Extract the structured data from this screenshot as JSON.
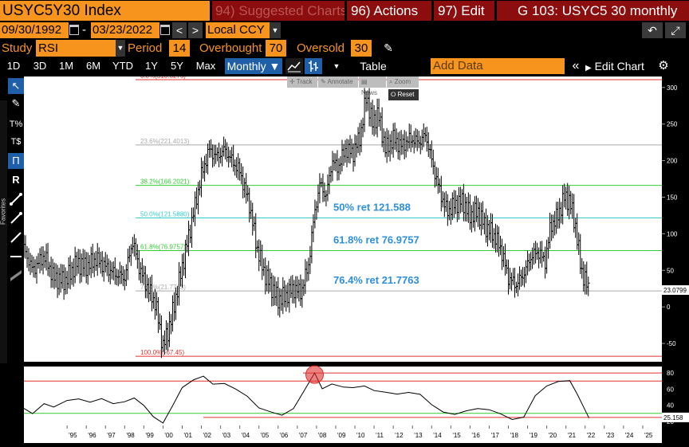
{
  "header": {
    "ticker": "USYC5Y30 Index",
    "suggested": "94) Suggested Charts",
    "actions": "96) Actions",
    "edit": "97) Edit",
    "title": "G 103: USYC5 30 monthly"
  },
  "dates": {
    "start": "09/30/1992",
    "dash": "-",
    "end": "03/23/2022",
    "prev": "<",
    "next": ">",
    "currency": "Local CCY",
    "undo": "↶",
    "expand": "⤢"
  },
  "study": {
    "label": "Study",
    "value": "RSI",
    "period_label": "Period",
    "period": "14",
    "overbought_label": "Overbought",
    "overbought": "70",
    "oversold_label": "Oversold",
    "oversold": "30"
  },
  "toolbar": {
    "ranges": [
      "1D",
      "3D",
      "1M",
      "6M",
      "YTD",
      "1Y",
      "5Y",
      "Max"
    ],
    "frequency": "Monthly ▼",
    "table": "Table",
    "add_data_placeholder": "Add Data",
    "collapse": "«",
    "edit_chart": "Edit Chart",
    "gear": "⚙"
  },
  "mini_toolbar": {
    "track": "✛ Track",
    "annotate": "✎ Annotate",
    "news": "▤ News",
    "zoom": "⌕ Zoom",
    "reset": "⭘ Reset"
  },
  "sidebar": {
    "favorites": "Favorites"
  },
  "colors": {
    "orange": "#f7941d",
    "dark_red": "#8b0d0d",
    "selected_blue": "#1f5fa8",
    "fib_red": "#e03030",
    "fib_green": "#33cc33",
    "fib_cyan": "#33cccc",
    "fib_gray": "#aaaaaa",
    "annotation_blue": "#2e8fe0"
  },
  "chart_data": [
    {
      "type": "candlestick",
      "frequency": "monthly",
      "ylim": [
        -75,
        315
      ],
      "yticks": [
        -50,
        0,
        50,
        100,
        150,
        200,
        250,
        300
      ],
      "xlim": [
        1992.75,
        2026
      ],
      "xtick_labels": [
        "'95",
        "'96",
        "'97",
        "'98",
        "'99",
        "'00",
        "'01",
        "'02",
        "'03",
        "'04",
        "'05",
        "'06",
        "'07",
        "'08",
        "'09",
        "'10",
        "'11",
        "'12",
        "'13",
        "'14",
        "'15",
        "'16",
        "'17",
        "'18",
        "'19",
        "'20",
        "'21",
        "'22",
        "'23",
        "'24",
        "'25"
      ],
      "last_value": "23.0799",
      "anchor_points": [
        [
          1992.75,
          80
        ],
        [
          1993.2,
          50
        ],
        [
          1993.8,
          70
        ],
        [
          1994.3,
          40
        ],
        [
          1994.9,
          35
        ],
        [
          1995.5,
          60
        ],
        [
          1996.0,
          55
        ],
        [
          1996.5,
          65
        ],
        [
          1997.0,
          55
        ],
        [
          1997.5,
          45
        ],
        [
          1998.0,
          40
        ],
        [
          1998.4,
          90
        ],
        [
          1998.8,
          50
        ],
        [
          1999.3,
          20
        ],
        [
          1999.6,
          5
        ],
        [
          2000.0,
          -55
        ],
        [
          2000.4,
          -20
        ],
        [
          2000.8,
          30
        ],
        [
          2001.2,
          80
        ],
        [
          2001.6,
          130
        ],
        [
          2002.0,
          180
        ],
        [
          2002.4,
          215
        ],
        [
          2002.8,
          205
        ],
        [
          2003.2,
          215
        ],
        [
          2003.6,
          200
        ],
        [
          2004.0,
          185
        ],
        [
          2004.5,
          140
        ],
        [
          2004.9,
          80
        ],
        [
          2005.3,
          45
        ],
        [
          2005.7,
          25
        ],
        [
          2006.0,
          10
        ],
        [
          2006.4,
          15
        ],
        [
          2006.8,
          25
        ],
        [
          2007.2,
          20
        ],
        [
          2007.6,
          60
        ],
        [
          2007.9,
          130
        ],
        [
          2008.2,
          170
        ],
        [
          2008.5,
          150
        ],
        [
          2008.8,
          200
        ],
        [
          2009.1,
          190
        ],
        [
          2009.5,
          215
        ],
        [
          2009.9,
          210
        ],
        [
          2010.3,
          235
        ],
        [
          2010.6,
          290
        ],
        [
          2010.9,
          250
        ],
        [
          2011.2,
          265
        ],
        [
          2011.6,
          215
        ],
        [
          2012.0,
          230
        ],
        [
          2012.4,
          220
        ],
        [
          2012.9,
          230
        ],
        [
          2013.3,
          225
        ],
        [
          2013.7,
          235
        ],
        [
          2014.0,
          200
        ],
        [
          2014.4,
          160
        ],
        [
          2014.8,
          130
        ],
        [
          2015.2,
          140
        ],
        [
          2015.6,
          145
        ],
        [
          2016.0,
          125
        ],
        [
          2016.4,
          130
        ],
        [
          2016.8,
          110
        ],
        [
          2017.2,
          100
        ],
        [
          2017.6,
          80
        ],
        [
          2018.0,
          40
        ],
        [
          2018.4,
          30
        ],
        [
          2018.8,
          45
        ],
        [
          2019.2,
          70
        ],
        [
          2019.6,
          75
        ],
        [
          2019.9,
          60
        ],
        [
          2020.2,
          110
        ],
        [
          2020.6,
          125
        ],
        [
          2020.9,
          150
        ],
        [
          2021.2,
          145
        ],
        [
          2021.5,
          110
        ],
        [
          2021.8,
          50
        ],
        [
          2022.2,
          23
        ]
      ],
      "fib_levels": [
        {
          "label": "0.0%(310.6276)",
          "value": 310.6276,
          "color": "#e03030"
        },
        {
          "label": "23.6%(221.4013)",
          "value": 221.4013,
          "color": "#aaaaaa"
        },
        {
          "label": "38.2%(166.2021)",
          "value": 166.2021,
          "color": "#33cc33"
        },
        {
          "label": "50.0%(121.5880)",
          "value": 121.588,
          "color": "#33cccc"
        },
        {
          "label": "61.8%(76.9757)",
          "value": 76.9757,
          "color": "#33cc33"
        },
        {
          "label": "76.4%(21.7763)",
          "value": 21.7763,
          "color": "#aaaaaa"
        },
        {
          "label": "100.0%(-67.45)",
          "value": -67.45,
          "color": "#e03030"
        }
      ],
      "annotations": [
        {
          "text": "50% ret 121.588",
          "value": 121.588
        },
        {
          "text": "61.8% ret 76.9757",
          "value": 76.9757
        },
        {
          "text": "76.4% ret 21.7763",
          "value": 21.7763
        }
      ]
    },
    {
      "type": "line",
      "name": "RSI",
      "ylim": [
        15,
        88
      ],
      "yticks": [
        20,
        40,
        60,
        80
      ],
      "overbought": 70,
      "oversold": 30,
      "last_value": "25.158",
      "points": [
        [
          1992.75,
          35
        ],
        [
          1993.2,
          28
        ],
        [
          1993.8,
          40
        ],
        [
          1994.3,
          38
        ],
        [
          1995.0,
          45
        ],
        [
          1995.6,
          48
        ],
        [
          1996.2,
          45
        ],
        [
          1996.8,
          50
        ],
        [
          1997.4,
          44
        ],
        [
          1998.0,
          46
        ],
        [
          1998.5,
          50
        ],
        [
          1999.0,
          38
        ],
        [
          1999.5,
          25
        ],
        [
          2000.0,
          20
        ],
        [
          2000.5,
          40
        ],
        [
          2001.0,
          60
        ],
        [
          2001.6,
          70
        ],
        [
          2002.1,
          75
        ],
        [
          2002.6,
          68
        ],
        [
          2003.2,
          68
        ],
        [
          2003.8,
          60
        ],
        [
          2004.4,
          50
        ],
        [
          2005.0,
          35
        ],
        [
          2005.6,
          30
        ],
        [
          2006.2,
          26
        ],
        [
          2006.8,
          35
        ],
        [
          2007.4,
          60
        ],
        [
          2007.9,
          78
        ],
        [
          2008.3,
          62
        ],
        [
          2008.8,
          65
        ],
        [
          2009.4,
          62
        ],
        [
          2009.9,
          60
        ],
        [
          2010.5,
          62
        ],
        [
          2011.0,
          58
        ],
        [
          2011.6,
          55
        ],
        [
          2012.2,
          52
        ],
        [
          2012.8,
          54
        ],
        [
          2013.4,
          52
        ],
        [
          2014.0,
          40
        ],
        [
          2014.6,
          32
        ],
        [
          2015.2,
          30
        ],
        [
          2015.8,
          35
        ],
        [
          2016.4,
          38
        ],
        [
          2017.0,
          36
        ],
        [
          2017.6,
          30
        ],
        [
          2018.2,
          22
        ],
        [
          2018.8,
          24
        ],
        [
          2019.4,
          50
        ],
        [
          2020.0,
          62
        ],
        [
          2020.6,
          68
        ],
        [
          2021.2,
          70
        ],
        [
          2021.6,
          55
        ],
        [
          2022.2,
          25
        ]
      ],
      "highlight": {
        "x": 2007.9,
        "y": 78,
        "color": "#e03030"
      }
    }
  ]
}
